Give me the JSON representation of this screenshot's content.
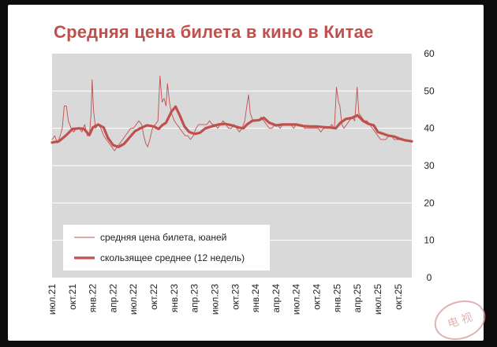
{
  "page": {
    "title": "Средняя цена билета в кино в Китае"
  },
  "colors": {
    "accent": "#c0504d",
    "plot_bg": "#d9d9d9",
    "grid": "#ffffff"
  },
  "chart_data": {
    "type": "line",
    "title": "Средняя цена билета в кино в Китае",
    "ylim": [
      0,
      60
    ],
    "yticks": [
      0,
      10,
      20,
      30,
      40,
      50,
      60
    ],
    "y_axis_position": "right",
    "xlim": [
      0,
      53
    ],
    "xticks": [
      {
        "x": 0,
        "label": "июл.21"
      },
      {
        "x": 3,
        "label": "окт.21"
      },
      {
        "x": 6,
        "label": "янв.22"
      },
      {
        "x": 9,
        "label": "апр.22"
      },
      {
        "x": 12,
        "label": "июл.22"
      },
      {
        "x": 15,
        "label": "окт.22"
      },
      {
        "x": 18,
        "label": "янв.23"
      },
      {
        "x": 21,
        "label": "апр.23"
      },
      {
        "x": 24,
        "label": "июл.23"
      },
      {
        "x": 27,
        "label": "окт.23"
      },
      {
        "x": 30,
        "label": "янв.24"
      },
      {
        "x": 33,
        "label": "апр.24"
      },
      {
        "x": 36,
        "label": "июл.24"
      },
      {
        "x": 39,
        "label": "окт.24"
      },
      {
        "x": 42,
        "label": "янв.25"
      },
      {
        "x": 45,
        "label": "апр.25"
      },
      {
        "x": 48,
        "label": "июл.25"
      },
      {
        "x": 51,
        "label": "окт.25"
      }
    ],
    "grid": true,
    "legend_position": "bottom-left",
    "series": [
      {
        "name": "средняя цена билета, юаней",
        "color": "#c0504d",
        "style": "thin",
        "points": [
          [
            0,
            37
          ],
          [
            0.4,
            38
          ],
          [
            0.8,
            36
          ],
          [
            1.2,
            38
          ],
          [
            1.5,
            40
          ],
          [
            1.8,
            46
          ],
          [
            2.1,
            46
          ],
          [
            2.4,
            42
          ],
          [
            2.8,
            40
          ],
          [
            3.2,
            39
          ],
          [
            3.6,
            40
          ],
          [
            4,
            40
          ],
          [
            4.4,
            39
          ],
          [
            4.8,
            41
          ],
          [
            5.2,
            38
          ],
          [
            5.5,
            38
          ],
          [
            5.75,
            44
          ],
          [
            5.9,
            53
          ],
          [
            6.1,
            45
          ],
          [
            6.4,
            40
          ],
          [
            6.8,
            41
          ],
          [
            7.2,
            40
          ],
          [
            7.6,
            38
          ],
          [
            8,
            37
          ],
          [
            8.4,
            36
          ],
          [
            8.8,
            35
          ],
          [
            9.2,
            34
          ],
          [
            9.6,
            35
          ],
          [
            10,
            36
          ],
          [
            10.4,
            37
          ],
          [
            10.8,
            38
          ],
          [
            11.2,
            39
          ],
          [
            11.6,
            40
          ],
          [
            12,
            40
          ],
          [
            12.4,
            41
          ],
          [
            12.8,
            42
          ],
          [
            13.2,
            41
          ],
          [
            13.5,
            38
          ],
          [
            13.8,
            36
          ],
          [
            14.1,
            35
          ],
          [
            14.4,
            37
          ],
          [
            14.8,
            40
          ],
          [
            15.2,
            41
          ],
          [
            15.6,
            42
          ],
          [
            15.9,
            54
          ],
          [
            16.2,
            47
          ],
          [
            16.5,
            48
          ],
          [
            16.8,
            46
          ],
          [
            17,
            52
          ],
          [
            17.3,
            47
          ],
          [
            17.6,
            44
          ],
          [
            18,
            42
          ],
          [
            18.4,
            41
          ],
          [
            18.8,
            40
          ],
          [
            19.2,
            39
          ],
          [
            19.6,
            38
          ],
          [
            20,
            38
          ],
          [
            20.4,
            37
          ],
          [
            20.8,
            38
          ],
          [
            21.2,
            40
          ],
          [
            21.6,
            41
          ],
          [
            22,
            41
          ],
          [
            22.4,
            41
          ],
          [
            22.8,
            41
          ],
          [
            23.2,
            42
          ],
          [
            23.6,
            41
          ],
          [
            24,
            41
          ],
          [
            24.4,
            40
          ],
          [
            24.8,
            41
          ],
          [
            25.2,
            42
          ],
          [
            25.6,
            41
          ],
          [
            26,
            40
          ],
          [
            26.4,
            40
          ],
          [
            26.8,
            41
          ],
          [
            27.2,
            40
          ],
          [
            27.6,
            39
          ],
          [
            28,
            40
          ],
          [
            28.4,
            42
          ],
          [
            28.7,
            46
          ],
          [
            28.95,
            49
          ],
          [
            29.2,
            44
          ],
          [
            29.6,
            42
          ],
          [
            30,
            42
          ],
          [
            30.4,
            42
          ],
          [
            30.8,
            43
          ],
          [
            31.2,
            42
          ],
          [
            31.6,
            41
          ],
          [
            32,
            40
          ],
          [
            32.4,
            40
          ],
          [
            32.8,
            41
          ],
          [
            33.2,
            41
          ],
          [
            33.6,
            40
          ],
          [
            34,
            41
          ],
          [
            34.4,
            41
          ],
          [
            34.8,
            41
          ],
          [
            35.2,
            41
          ],
          [
            35.6,
            40
          ],
          [
            36,
            41
          ],
          [
            36.4,
            41
          ],
          [
            36.8,
            41
          ],
          [
            37.2,
            40
          ],
          [
            37.6,
            40
          ],
          [
            38,
            40
          ],
          [
            38.4,
            40
          ],
          [
            38.8,
            40
          ],
          [
            39.2,
            40
          ],
          [
            39.6,
            39
          ],
          [
            40,
            40
          ],
          [
            40.4,
            40
          ],
          [
            40.8,
            40
          ],
          [
            41.2,
            41
          ],
          [
            41.6,
            40
          ],
          [
            41.9,
            51
          ],
          [
            42.2,
            47
          ],
          [
            42.4,
            46
          ],
          [
            42.7,
            41
          ],
          [
            43,
            40
          ],
          [
            43.4,
            41
          ],
          [
            43.8,
            42
          ],
          [
            44.2,
            43
          ],
          [
            44.6,
            42
          ],
          [
            44.95,
            51
          ],
          [
            45.2,
            44
          ],
          [
            45.6,
            43
          ],
          [
            46,
            42
          ],
          [
            46.4,
            42
          ],
          [
            46.8,
            41
          ],
          [
            47.2,
            40
          ],
          [
            47.6,
            39
          ],
          [
            48,
            38
          ],
          [
            48.4,
            37
          ],
          [
            48.8,
            37
          ],
          [
            49.2,
            37
          ],
          [
            49.6,
            38
          ],
          [
            50,
            38
          ],
          [
            50.4,
            37
          ],
          [
            50.8,
            37
          ],
          [
            51.2,
            37
          ],
          [
            51.6,
            37
          ],
          [
            52,
            37
          ]
        ]
      },
      {
        "name": "скользящее среднее (12 недель)",
        "color": "#c0504d",
        "style": "thick",
        "points": [
          [
            0,
            36.2
          ],
          [
            1,
            36.5
          ],
          [
            2,
            38
          ],
          [
            3,
            39.8
          ],
          [
            4,
            40
          ],
          [
            4.7,
            39.8
          ],
          [
            5.5,
            38.2
          ],
          [
            6,
            40.2
          ],
          [
            6.8,
            41
          ],
          [
            7.6,
            40.2
          ],
          [
            8.2,
            37.5
          ],
          [
            9,
            35.5
          ],
          [
            9.8,
            35
          ],
          [
            10.6,
            35.8
          ],
          [
            11.4,
            37.5
          ],
          [
            12.2,
            39.2
          ],
          [
            13,
            40
          ],
          [
            14,
            40.8
          ],
          [
            15,
            40.5
          ],
          [
            15.7,
            39.8
          ],
          [
            16.2,
            40.8
          ],
          [
            16.8,
            41.5
          ],
          [
            17.6,
            44.5
          ],
          [
            18.2,
            45.8
          ],
          [
            18.8,
            43.5
          ],
          [
            19.5,
            40.5
          ],
          [
            20.2,
            39
          ],
          [
            21,
            38.5
          ],
          [
            21.8,
            38.8
          ],
          [
            22.6,
            40
          ],
          [
            23.5,
            40.5
          ],
          [
            24.5,
            41
          ],
          [
            25.5,
            41.2
          ],
          [
            26.5,
            40.8
          ],
          [
            27.5,
            40.2
          ],
          [
            28.2,
            40
          ],
          [
            28.7,
            41
          ],
          [
            29.5,
            42
          ],
          [
            30.5,
            42.2
          ],
          [
            31.2,
            42.8
          ],
          [
            32,
            41.5
          ],
          [
            33,
            40.8
          ],
          [
            34,
            41
          ],
          [
            35,
            41
          ],
          [
            36,
            41
          ],
          [
            37,
            40.6
          ],
          [
            38,
            40.5
          ],
          [
            39,
            40.5
          ],
          [
            40,
            40.3
          ],
          [
            41,
            40.2
          ],
          [
            41.8,
            40
          ],
          [
            42.5,
            41.5
          ],
          [
            43.3,
            42.5
          ],
          [
            44.2,
            42.8
          ],
          [
            45,
            43.5
          ],
          [
            45.8,
            42
          ],
          [
            46.6,
            41.2
          ],
          [
            47.4,
            40.8
          ],
          [
            48,
            39
          ],
          [
            48.8,
            38.5
          ],
          [
            49.6,
            38
          ],
          [
            50.4,
            37.8
          ],
          [
            51.2,
            37.2
          ],
          [
            52,
            36.8
          ],
          [
            53,
            36.5
          ]
        ]
      }
    ]
  }
}
